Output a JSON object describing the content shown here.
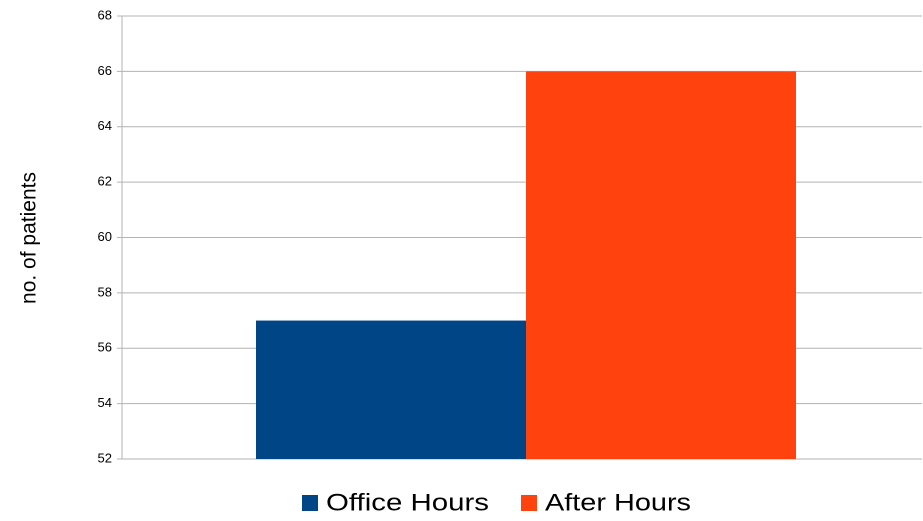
{
  "chart_data": {
    "type": "bar",
    "y_label": "no. of patients",
    "categories": [
      null
    ],
    "series": [
      {
        "name": "Office Hours",
        "color": "#004586",
        "values": [
          57
        ]
      },
      {
        "name": "After Hours",
        "color": "#ff420e",
        "values": [
          66
        ]
      }
    ],
    "ylim": [
      52,
      68
    ],
    "yticks": [
      52,
      54,
      56,
      58,
      60,
      62,
      64,
      66,
      68
    ],
    "grid": true,
    "legend": "bottom"
  }
}
